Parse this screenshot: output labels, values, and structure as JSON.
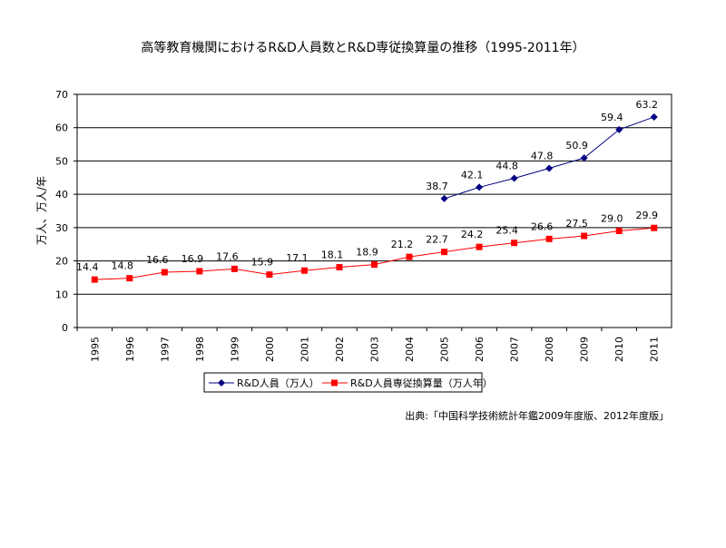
{
  "chart_data": {
    "type": "line",
    "title": "高等教育機関におけるR&D人員数とR&D専従換算量の推移（1995-2011年）",
    "ylabel": "万人、万人/年",
    "xlabel": "",
    "ylim": [
      0,
      70
    ],
    "yticks": [
      0,
      10,
      20,
      30,
      40,
      50,
      60,
      70
    ],
    "grid": true,
    "legend_position": "bottom",
    "categories": [
      "1995",
      "1996",
      "1997",
      "1998",
      "1999",
      "2000",
      "2001",
      "2002",
      "2003",
      "2004",
      "2005",
      "2006",
      "2007",
      "2008",
      "2009",
      "2010",
      "2011"
    ],
    "series": [
      {
        "name": "R&D人員（万人）",
        "color": "#000080",
        "marker": "diamond",
        "values": [
          null,
          null,
          null,
          null,
          null,
          null,
          null,
          null,
          null,
          null,
          38.7,
          42.1,
          44.8,
          47.8,
          50.9,
          59.4,
          63.2
        ]
      },
      {
        "name": "R&D人員専従換算量（万人年）",
        "color": "#FF0000",
        "marker": "square",
        "values": [
          14.4,
          14.8,
          16.6,
          16.9,
          17.6,
          15.9,
          17.1,
          18.1,
          18.9,
          21.2,
          22.7,
          24.2,
          25.4,
          26.6,
          27.5,
          29.0,
          29.9
        ]
      }
    ],
    "source": "出典:「中国科学技術統計年鑑2009年度版、2012年度版」"
  }
}
